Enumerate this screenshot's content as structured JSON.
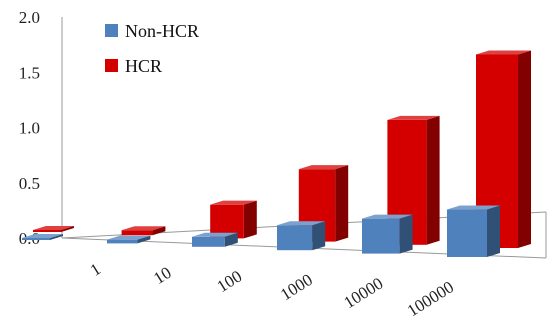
{
  "chart_data": {
    "type": "bar",
    "title": "",
    "xlabel": "",
    "ylabel": "",
    "ylim": [
      0,
      2.0
    ],
    "yticks": [
      "0.0",
      "0.5",
      "1.0",
      "1.5",
      "2.0"
    ],
    "categories": [
      "1",
      "10",
      "100",
      "1000",
      "10000",
      "100000"
    ],
    "series": [
      {
        "name": "Non-HCR",
        "values": [
          0.01,
          0.03,
          0.08,
          0.2,
          0.28,
          0.38
        ]
      },
      {
        "name": "HCR",
        "values": [
          0.01,
          0.04,
          0.27,
          0.58,
          1.0,
          1.55
        ]
      }
    ],
    "legend": "top-left",
    "style": "3d-clustered-perspective"
  },
  "colors": {
    "nonhcr": "#4f81bd",
    "hcr": "#d40000"
  }
}
